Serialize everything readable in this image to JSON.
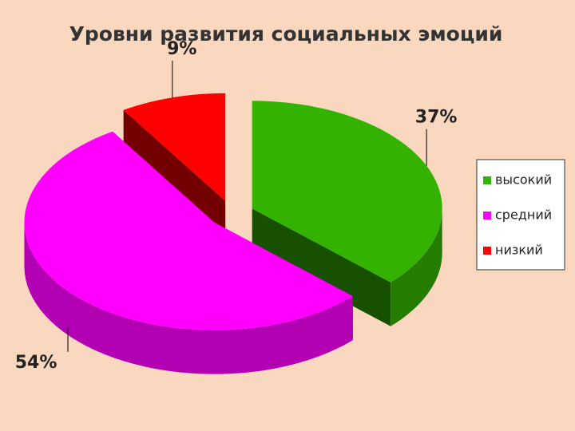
{
  "chart_data": {
    "type": "pie3d",
    "title": "Уровни развития социальных эмоций",
    "categories": [
      "высокий",
      "средний",
      "низкий"
    ],
    "values": [
      37,
      54,
      9
    ],
    "value_labels": [
      "37%",
      "54%",
      "9%"
    ],
    "colors": [
      "#33b300",
      "#ff00ff",
      "#ff0000"
    ],
    "legend": "right"
  }
}
